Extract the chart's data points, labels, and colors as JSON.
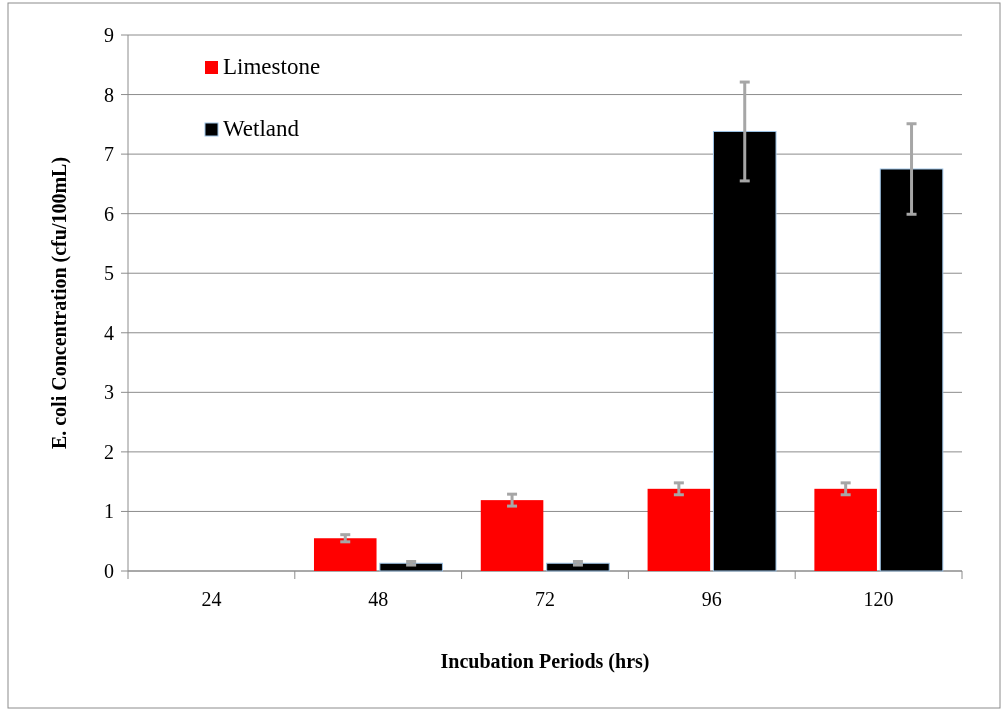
{
  "chart_data": {
    "type": "bar",
    "xlabel": "Incubation Periods (hrs)",
    "ylabel": "E. coli Concentration (cfu/100mL)",
    "categories": [
      "24",
      "48",
      "72",
      "96",
      "120"
    ],
    "series": [
      {
        "name": "Limestone",
        "color": "#ff0000",
        "values": [
          0,
          0.55,
          1.19,
          1.38,
          1.38
        ],
        "errors": [
          null,
          0.06,
          0.1,
          0.1,
          0.1
        ]
      },
      {
        "name": "Wetland",
        "color": "#000000",
        "values": [
          0,
          0.13,
          0.13,
          7.38,
          6.75
        ],
        "errors": [
          null,
          0.03,
          0.03,
          0.83,
          0.76
        ]
      }
    ],
    "ylim": [
      0,
      9
    ],
    "yticks": [
      0,
      1,
      2,
      3,
      4,
      5,
      6,
      7,
      8,
      9
    ],
    "grid": "y",
    "legend": "top left"
  }
}
